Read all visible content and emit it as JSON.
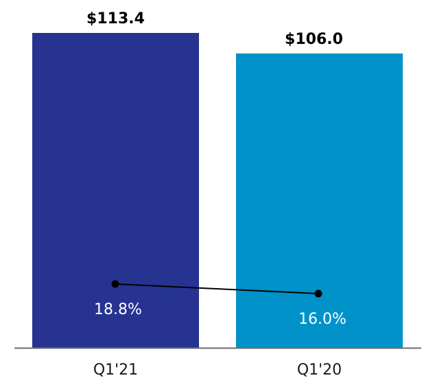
{
  "chart_data": {
    "type": "bar",
    "categories": [
      "Q1'21",
      "Q1'20"
    ],
    "values": [
      113.4,
      106.0
    ],
    "value_labels": [
      "$113.4",
      "$106.0"
    ],
    "bar_colors": [
      "#263391",
      "#0092c9"
    ],
    "ylim": [
      0,
      113.4
    ],
    "line_series": {
      "values": [
        18.8,
        16.0
      ],
      "labels": [
        "18.8%",
        "16.0%"
      ],
      "color": "#000000",
      "label_color": "#ffffff"
    },
    "axis_color": "#6d6d6d",
    "grid": false,
    "title": "",
    "xlabel": "",
    "ylabel": ""
  }
}
